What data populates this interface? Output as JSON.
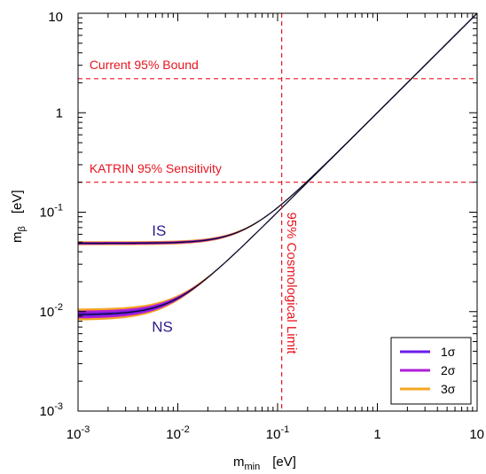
{
  "chart_data": {
    "type": "line",
    "xscale": "log",
    "yscale": "log",
    "xlim": [
      0.001,
      10
    ],
    "ylim": [
      0.001,
      10
    ],
    "xlabel": {
      "main": "m",
      "sub": "min",
      "unit": "[eV]"
    },
    "ylabel": {
      "main": "m",
      "sub": "β",
      "unit": "[eV]"
    },
    "x_ticks": [
      {
        "value": 0.001,
        "base": "10",
        "exp": "-3"
      },
      {
        "value": 0.01,
        "base": "10",
        "exp": "-2"
      },
      {
        "value": 0.1,
        "base": "10",
        "exp": "-1"
      },
      {
        "value": 1,
        "base": "1",
        "exp": ""
      },
      {
        "value": 10,
        "base": "10",
        "exp": ""
      }
    ],
    "y_ticks": [
      {
        "value": 0.001,
        "base": "10",
        "exp": "-3"
      },
      {
        "value": 0.01,
        "base": "10",
        "exp": "-2"
      },
      {
        "value": 0.1,
        "base": "10",
        "exp": "-1"
      },
      {
        "value": 1,
        "base": "1",
        "exp": ""
      },
      {
        "value": 10,
        "base": "10",
        "exp": ""
      }
    ],
    "model": {
      "IS": {
        "offset_center": 0.0487,
        "offset_3sigma": [
          0.0465,
          0.051
        ],
        "offset_2sigma": [
          0.0472,
          0.0502
        ],
        "offset_1sigma": [
          0.048,
          0.0494
        ]
      },
      "NS": {
        "offset_center": 0.0093,
        "offset_3sigma": [
          0.0081,
          0.0107
        ],
        "offset_2sigma": [
          0.0085,
          0.0102
        ],
        "offset_1sigma": [
          0.0089,
          0.0097
        ]
      }
    },
    "series": [
      {
        "name": "1σ",
        "color": "#6a1be8"
      },
      {
        "name": "2σ",
        "color": "#b01ed8"
      },
      {
        "name": "3σ",
        "color": "#f5a623"
      }
    ],
    "band_labels": [
      {
        "text": "IS",
        "x": 0.0055,
        "y": 0.058
      },
      {
        "text": "NS",
        "x": 0.0055,
        "y": 0.0063
      }
    ],
    "reference_lines": [
      {
        "orientation": "horizontal",
        "value": 2.2,
        "label": "Current 95% Bound",
        "label_x": 0.0013,
        "label_y": 2.75,
        "color": "#e8141e"
      },
      {
        "orientation": "horizontal",
        "value": 0.2,
        "label": "KATRIN 95% Sensitivity",
        "label_x": 0.0013,
        "label_y": 0.25,
        "color": "#e8141e"
      },
      {
        "orientation": "vertical",
        "value": 0.11,
        "label": "95% Cosmological Limit",
        "label_x": 0.125,
        "label_y": 0.1,
        "color": "#e8141e"
      }
    ],
    "legend": {
      "position": "bottom-right",
      "entries": [
        "1σ",
        "2σ",
        "3σ"
      ]
    },
    "grid": false
  }
}
